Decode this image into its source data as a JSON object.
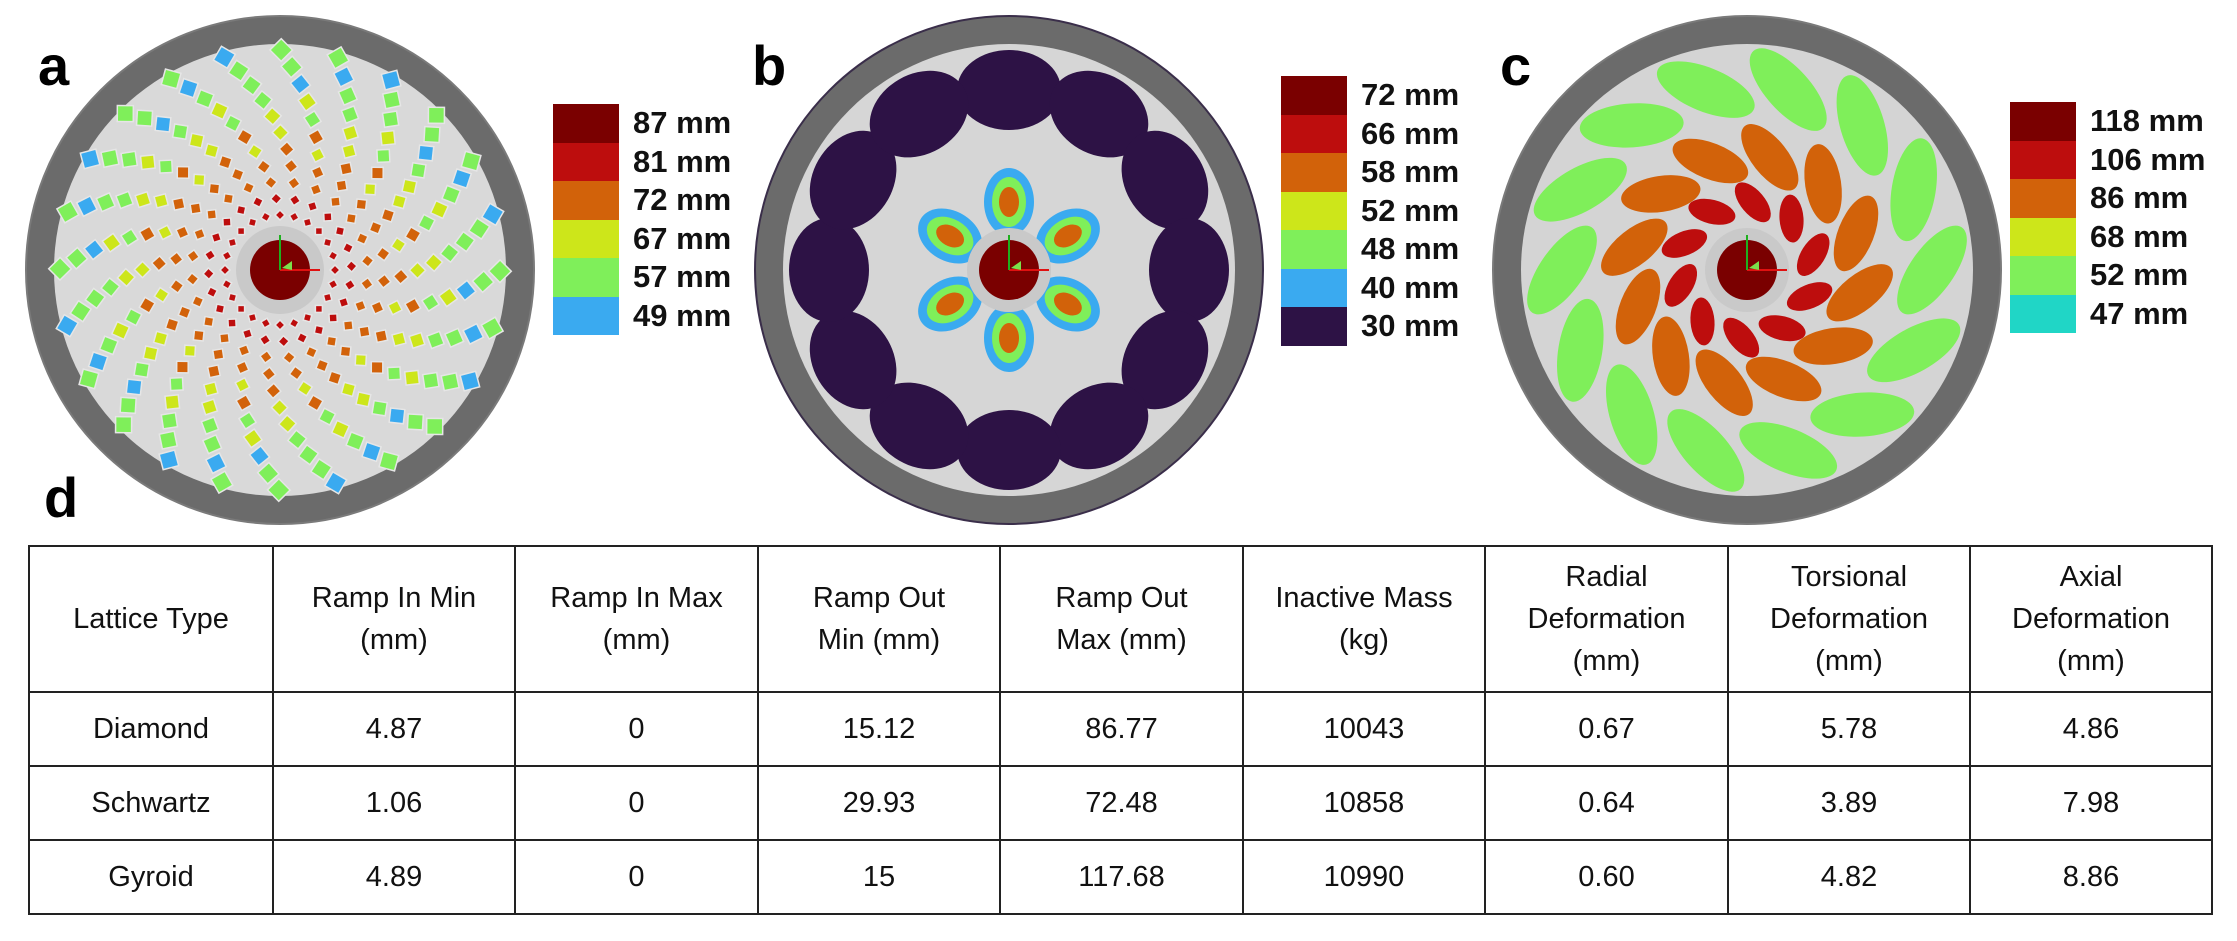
{
  "panels": {
    "a": {
      "letter": "a",
      "lattice": "Diamond",
      "legend": [
        {
          "label": "87 mm",
          "color": "#7a0000"
        },
        {
          "label": "81 mm",
          "color": "#bd0d0d"
        },
        {
          "label": "72 mm",
          "color": "#d2620a"
        },
        {
          "label": "67 mm",
          "color": "#cde61a"
        },
        {
          "label": "57 mm",
          "color": "#7fef5a"
        },
        {
          "label": "49 mm",
          "color": "#3aaaf0"
        }
      ]
    },
    "b": {
      "letter": "b",
      "lattice": "Schwartz",
      "legend": [
        {
          "label": "72 mm",
          "color": "#7a0000"
        },
        {
          "label": "66 mm",
          "color": "#bd0d0d"
        },
        {
          "label": "58 mm",
          "color": "#d2620a"
        },
        {
          "label": "52 mm",
          "color": "#cde61a"
        },
        {
          "label": "48 mm",
          "color": "#7fef5a"
        },
        {
          "label": "40 mm",
          "color": "#3aaaf0"
        },
        {
          "label": "30 mm",
          "color": "#2d1245"
        }
      ]
    },
    "c": {
      "letter": "c",
      "lattice": "Gyroid",
      "legend": [
        {
          "label": "118 mm",
          "color": "#7a0000"
        },
        {
          "label": "106 mm",
          "color": "#bd0d0d"
        },
        {
          "label": "86 mm",
          "color": "#d2620a"
        },
        {
          "label": "68 mm",
          "color": "#cde61a"
        },
        {
          "label": "52 mm",
          "color": "#7fef5a"
        },
        {
          "label": "47 mm",
          "color": "#20d6c6"
        }
      ]
    },
    "d": {
      "letter": "d"
    }
  },
  "table": {
    "headers": [
      "Lattice Type",
      "Ramp In Min\n(mm)",
      "Ramp In Max\n(mm)",
      "Ramp Out\nMin (mm)",
      "Ramp Out\nMax (mm)",
      "Inactive Mass\n(kg)",
      "Radial\nDeformation\n(mm)",
      "Torsional\nDeformation\n(mm)",
      "Axial\nDeformation\n(mm)"
    ],
    "rows": [
      [
        "Diamond",
        "4.87",
        "0",
        "15.12",
        "86.77",
        "10043",
        "0.67",
        "5.78",
        "4.86"
      ],
      [
        "Schwartz",
        "1.06",
        "0",
        "29.93",
        "72.48",
        "10858",
        "0.64",
        "3.89",
        "7.98"
      ],
      [
        "Gyroid",
        "4.89",
        "0",
        "15",
        "117.68",
        "10990",
        "0.60",
        "4.82",
        "8.86"
      ]
    ]
  }
}
